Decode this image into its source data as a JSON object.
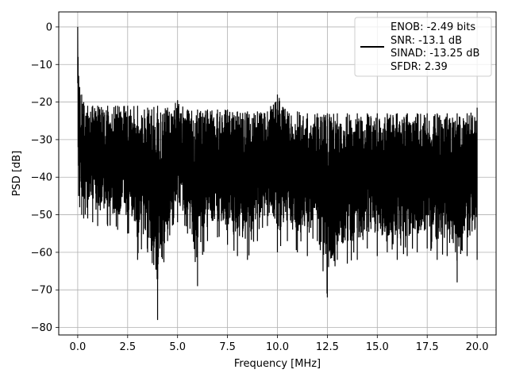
{
  "chart_data": {
    "type": "line",
    "title": "",
    "xlabel": "Frequency [MHz]",
    "ylabel": "PSD [dB]",
    "xlim": [
      -0.95,
      20.95
    ],
    "ylim": [
      -82,
      4
    ],
    "xticks": [
      0.0,
      2.5,
      5.0,
      7.5,
      10.0,
      12.5,
      15.0,
      17.5,
      20.0
    ],
    "xtick_labels": [
      "0.0",
      "2.5",
      "5.0",
      "7.5",
      "10.0",
      "12.5",
      "15.0",
      "17.5",
      "20.0"
    ],
    "yticks": [
      0,
      -10,
      -20,
      -30,
      -40,
      -50,
      -60,
      -70,
      -80
    ],
    "ytick_labels": [
      "0",
      "−10",
      "−20",
      "−30",
      "−40",
      "−50",
      "−60",
      "−70",
      "−80"
    ],
    "grid": true,
    "legend_position": "top-right",
    "line_color": "#000000",
    "legend": {
      "lines": [
        "ENOB: -2.49 bits",
        "SNR: -13.1 dB",
        "SINAD: -13.25 dB",
        "SFDR: 2.39"
      ]
    },
    "series": [
      {
        "x": [
          0.0,
          0.02,
          0.05,
          0.1,
          0.2,
          0.3,
          0.5,
          0.75,
          1.0,
          1.5,
          2.0,
          2.5,
          3.0,
          3.5,
          4.0,
          4.5,
          5.0,
          5.5,
          6.0,
          6.5,
          7.0,
          7.5,
          8.0,
          8.5,
          9.0,
          9.5,
          10.0,
          10.5,
          11.0,
          11.5,
          12.0,
          12.5,
          13.0,
          13.5,
          14.0,
          14.5,
          15.0,
          15.5,
          16.0,
          16.5,
          17.0,
          17.5,
          18.0,
          18.5,
          19.0,
          19.5,
          20.0
        ],
        "upper": [
          0,
          -8,
          -13,
          -16,
          -18,
          -20,
          -21,
          -21,
          -21,
          -21,
          -21,
          -21,
          -21,
          -21.5,
          -21,
          -21.5,
          -19.5,
          -22,
          -22,
          -22,
          -22,
          -22,
          -22.5,
          -22.5,
          -22.5,
          -22.5,
          -18,
          -22.5,
          -22.5,
          -23,
          -23,
          -23,
          -23,
          -23,
          -23,
          -23,
          -23,
          -23,
          -23,
          -23,
          -23,
          -23,
          -23,
          -23,
          -23,
          -23,
          -21.5
        ],
        "lower": [
          -15,
          -32,
          -45,
          -48,
          -50,
          -51,
          -51,
          -52,
          -53,
          -53,
          -54,
          -55,
          -62,
          -60,
          -78,
          -57,
          -52,
          -55,
          -69,
          -57,
          -56,
          -58,
          -61,
          -62,
          -57,
          -53,
          -60,
          -57,
          -60,
          -61,
          -57,
          -72,
          -62,
          -63,
          -62,
          -59,
          -61,
          -60,
          -62,
          -61,
          -60,
          -59,
          -62,
          -61,
          -68,
          -61,
          -62
        ]
      }
    ]
  }
}
